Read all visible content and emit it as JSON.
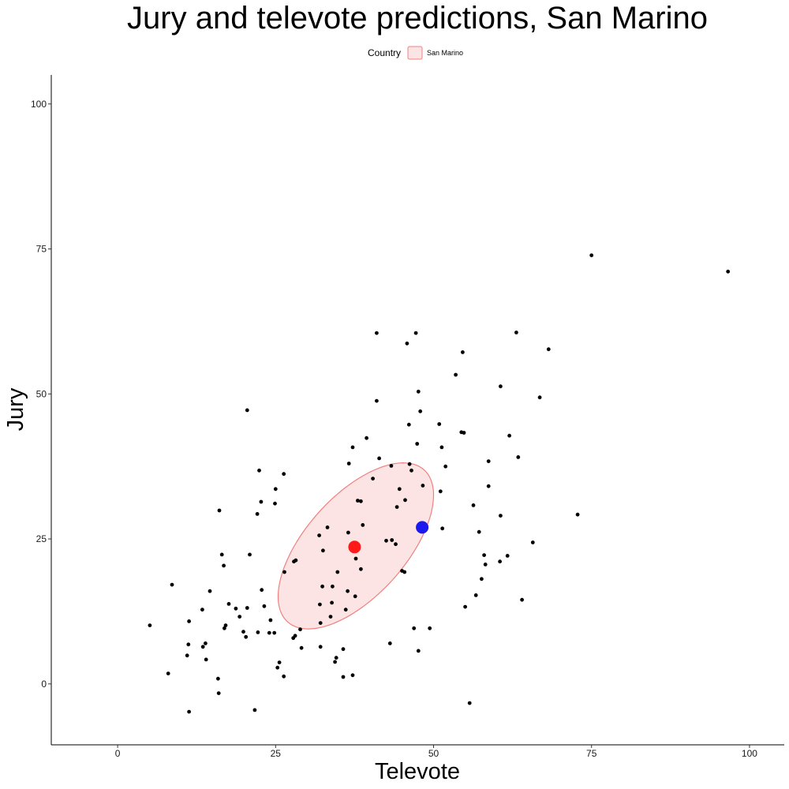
{
  "chart_data": {
    "type": "scatter",
    "title": "Jury and televote predictions, San Marino",
    "xlabel": "Televote",
    "ylabel": "Jury",
    "xlim": [
      -10.5,
      105.5
    ],
    "ylim": [
      -10.5,
      105
    ],
    "xticks": [
      0,
      25,
      50,
      75,
      100
    ],
    "yticks": [
      0,
      25,
      50,
      75,
      100
    ],
    "grid": false,
    "legend": {
      "title": "Country",
      "placement": "top",
      "entries": [
        {
          "label": "San Marino",
          "fill": "#fde4e4",
          "stroke": "#f08080"
        }
      ]
    },
    "ellipse": {
      "series": "San Marino",
      "cx": 37.7,
      "cy": 23.8,
      "half_major_axis": 17.0,
      "half_minor_axis": 8.2,
      "angle_deg": 52,
      "fill": "#fde4e4",
      "stroke": "#f08080"
    },
    "highlights": [
      {
        "name": "San Marino mean prediction",
        "x": 37.5,
        "y": 23.6,
        "color": "#ff1a1a"
      },
      {
        "name": "San Marino result",
        "x": 48.2,
        "y": 27.0,
        "color": "#1a1aee"
      }
    ],
    "points": [
      [
        5.1,
        10.1
      ],
      [
        8.0,
        1.8
      ],
      [
        8.6,
        17.1
      ],
      [
        11.0,
        4.9
      ],
      [
        11.2,
        6.8
      ],
      [
        11.3,
        10.8
      ],
      [
        11.3,
        -4.8
      ],
      [
        13.5,
        6.4
      ],
      [
        13.4,
        12.8
      ],
      [
        13.9,
        7.0
      ],
      [
        14.0,
        4.2
      ],
      [
        14.6,
        16.0
      ],
      [
        15.9,
        0.9
      ],
      [
        16.0,
        -1.6
      ],
      [
        16.1,
        29.9
      ],
      [
        16.5,
        22.3
      ],
      [
        16.8,
        20.4
      ],
      [
        16.9,
        9.6
      ],
      [
        17.1,
        10.1
      ],
      [
        17.6,
        13.8
      ],
      [
        18.7,
        13.0
      ],
      [
        19.3,
        11.6
      ],
      [
        19.9,
        9.0
      ],
      [
        20.3,
        8.1
      ],
      [
        20.5,
        47.2
      ],
      [
        20.5,
        13.1
      ],
      [
        20.9,
        22.3
      ],
      [
        21.7,
        -4.5
      ],
      [
        22.1,
        29.3
      ],
      [
        22.2,
        8.9
      ],
      [
        22.4,
        36.8
      ],
      [
        22.7,
        31.4
      ],
      [
        22.8,
        16.2
      ],
      [
        23.2,
        13.4
      ],
      [
        24.0,
        8.8
      ],
      [
        24.2,
        11.0
      ],
      [
        24.8,
        8.8
      ],
      [
        24.9,
        31.1
      ],
      [
        25.0,
        33.6
      ],
      [
        25.3,
        2.8
      ],
      [
        25.6,
        3.7
      ],
      [
        26.3,
        36.2
      ],
      [
        26.3,
        1.3
      ],
      [
        26.4,
        19.3
      ],
      [
        27.9,
        21.1
      ],
      [
        27.8,
        7.9
      ],
      [
        28.1,
        8.3
      ],
      [
        28.2,
        21.3
      ],
      [
        28.9,
        9.4
      ],
      [
        29.1,
        6.2
      ],
      [
        31.9,
        25.6
      ],
      [
        32.0,
        13.7
      ],
      [
        32.1,
        6.4
      ],
      [
        32.1,
        10.5
      ],
      [
        32.4,
        16.8
      ],
      [
        32.5,
        23.0
      ],
      [
        33.2,
        27.0
      ],
      [
        33.7,
        11.6
      ],
      [
        33.9,
        14.0
      ],
      [
        34.0,
        16.8
      ],
      [
        34.4,
        3.8
      ],
      [
        34.6,
        4.5
      ],
      [
        34.8,
        19.3
      ],
      [
        35.7,
        1.2
      ],
      [
        35.7,
        6.0
      ],
      [
        36.1,
        12.8
      ],
      [
        36.4,
        16.0
      ],
      [
        36.5,
        26.1
      ],
      [
        36.6,
        38.0
      ],
      [
        37.2,
        40.8
      ],
      [
        37.2,
        1.5
      ],
      [
        37.6,
        15.1
      ],
      [
        37.7,
        21.6
      ],
      [
        38.0,
        31.6
      ],
      [
        38.5,
        31.5
      ],
      [
        38.8,
        27.4
      ],
      [
        38.5,
        19.8
      ],
      [
        39.4,
        42.4
      ],
      [
        40.4,
        35.4
      ],
      [
        41.0,
        60.5
      ],
      [
        41.0,
        48.8
      ],
      [
        41.4,
        38.9
      ],
      [
        42.5,
        24.7
      ],
      [
        43.1,
        7.0
      ],
      [
        43.3,
        37.6
      ],
      [
        43.4,
        24.8
      ],
      [
        44.0,
        24.1
      ],
      [
        44.2,
        30.5
      ],
      [
        44.6,
        33.6
      ],
      [
        45.0,
        19.5
      ],
      [
        45.4,
        19.3
      ],
      [
        45.5,
        31.7
      ],
      [
        45.8,
        58.7
      ],
      [
        46.1,
        44.7
      ],
      [
        46.2,
        37.9
      ],
      [
        46.5,
        36.8
      ],
      [
        46.9,
        9.6
      ],
      [
        47.2,
        60.5
      ],
      [
        47.4,
        41.4
      ],
      [
        47.6,
        50.4
      ],
      [
        47.6,
        5.7
      ],
      [
        47.9,
        47.0
      ],
      [
        48.3,
        34.2
      ],
      [
        49.4,
        9.6
      ],
      [
        50.9,
        44.8
      ],
      [
        51.1,
        33.2
      ],
      [
        51.3,
        40.8
      ],
      [
        51.4,
        26.8
      ],
      [
        51.9,
        37.5
      ],
      [
        53.5,
        53.3
      ],
      [
        54.4,
        43.4
      ],
      [
        54.6,
        57.2
      ],
      [
        54.8,
        43.3
      ],
      [
        55.0,
        13.3
      ],
      [
        55.7,
        -3.3
      ],
      [
        56.3,
        30.8
      ],
      [
        56.7,
        15.3
      ],
      [
        57.2,
        26.2
      ],
      [
        57.6,
        18.1
      ],
      [
        58.0,
        22.2
      ],
      [
        58.2,
        20.6
      ],
      [
        58.7,
        38.4
      ],
      [
        58.7,
        34.1
      ],
      [
        60.5,
        21.1
      ],
      [
        60.6,
        51.3
      ],
      [
        60.6,
        29.0
      ],
      [
        61.7,
        22.1
      ],
      [
        62.0,
        42.8
      ],
      [
        63.1,
        60.6
      ],
      [
        63.4,
        39.1
      ],
      [
        64.0,
        14.5
      ],
      [
        65.7,
        24.4
      ],
      [
        66.8,
        49.4
      ],
      [
        68.2,
        57.7
      ],
      [
        72.8,
        29.2
      ],
      [
        75.0,
        73.9
      ],
      [
        96.6,
        71.1
      ]
    ]
  }
}
